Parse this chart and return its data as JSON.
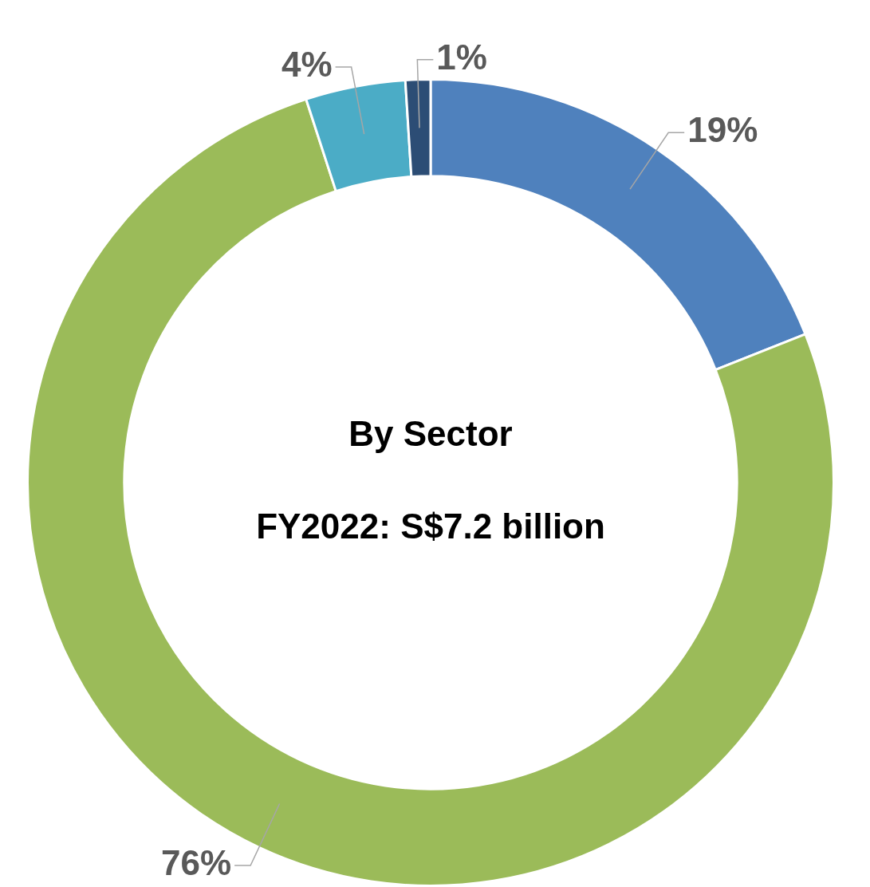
{
  "chart_data": {
    "type": "donut",
    "title": "By Sector",
    "subtitle": "FY2022: S$7.2 billion",
    "categories": [
      null,
      null,
      null,
      null
    ],
    "values": [
      19,
      76,
      4,
      1
    ],
    "colors": [
      "#4f81bd",
      "#9bbb59",
      "#4bacc6",
      "#2c4d75"
    ],
    "value_labels": [
      "19%",
      "76%",
      "4%",
      "1%"
    ],
    "legend": false
  }
}
